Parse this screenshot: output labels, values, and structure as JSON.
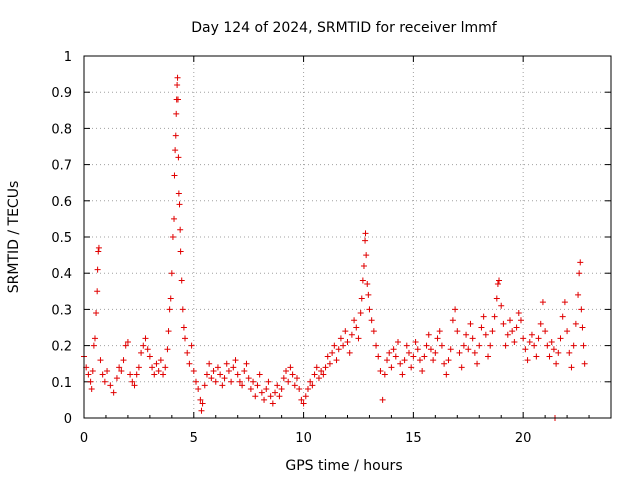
{
  "chart_data": {
    "type": "scatter",
    "title": "Day 124 of 2024, SRMTID for receiver lmmf",
    "xlabel": "GPS time / hours",
    "ylabel": "SRMTID / TECUs",
    "xlim": [
      0,
      24
    ],
    "ylim": [
      0,
      1
    ],
    "x_ticks": [
      0,
      5,
      10,
      15,
      20
    ],
    "y_ticks": [
      0,
      0.1,
      0.2,
      0.3,
      0.4,
      0.5,
      0.6,
      0.7,
      0.8,
      0.9,
      1
    ],
    "x_tick_labels": [
      "0",
      "5",
      "10",
      "15",
      "20"
    ],
    "y_tick_labels": [
      "0",
      "0.1",
      "0.2",
      "0.3",
      "0.4",
      "0.5",
      "0.6",
      "0.7",
      "0.8",
      "0.9",
      "1"
    ],
    "grid": true,
    "marker": "+",
    "color": "#e00000",
    "series": [
      {
        "name": "SRMTID",
        "points": [
          [
            0.0,
            0.17
          ],
          [
            0.1,
            0.14
          ],
          [
            0.2,
            0.12
          ],
          [
            0.3,
            0.1
          ],
          [
            0.35,
            0.08
          ],
          [
            0.4,
            0.13
          ],
          [
            0.45,
            0.2
          ],
          [
            0.5,
            0.22
          ],
          [
            0.55,
            0.29
          ],
          [
            0.6,
            0.35
          ],
          [
            0.62,
            0.41
          ],
          [
            0.65,
            0.46
          ],
          [
            0.68,
            0.47
          ],
          [
            0.75,
            0.16
          ],
          [
            0.85,
            0.12
          ],
          [
            0.95,
            0.1
          ],
          [
            1.05,
            0.13
          ],
          [
            1.2,
            0.09
          ],
          [
            1.35,
            0.07
          ],
          [
            1.5,
            0.11
          ],
          [
            1.6,
            0.14
          ],
          [
            1.7,
            0.13
          ],
          [
            1.8,
            0.16
          ],
          [
            1.9,
            0.2
          ],
          [
            2.0,
            0.21
          ],
          [
            2.1,
            0.12
          ],
          [
            2.2,
            0.1
          ],
          [
            2.3,
            0.09
          ],
          [
            2.4,
            0.12
          ],
          [
            2.5,
            0.14
          ],
          [
            2.6,
            0.18
          ],
          [
            2.7,
            0.2
          ],
          [
            2.8,
            0.22
          ],
          [
            2.9,
            0.19
          ],
          [
            3.0,
            0.17
          ],
          [
            3.1,
            0.14
          ],
          [
            3.2,
            0.12
          ],
          [
            3.3,
            0.15
          ],
          [
            3.4,
            0.13
          ],
          [
            3.5,
            0.16
          ],
          [
            3.6,
            0.12
          ],
          [
            3.7,
            0.14
          ],
          [
            3.8,
            0.19
          ],
          [
            3.85,
            0.24
          ],
          [
            3.9,
            0.3
          ],
          [
            3.95,
            0.33
          ],
          [
            4.0,
            0.4
          ],
          [
            4.05,
            0.5
          ],
          [
            4.1,
            0.55
          ],
          [
            4.12,
            0.67
          ],
          [
            4.15,
            0.74
          ],
          [
            4.18,
            0.78
          ],
          [
            4.2,
            0.84
          ],
          [
            4.22,
            0.88
          ],
          [
            4.24,
            0.92
          ],
          [
            4.26,
            0.94
          ],
          [
            4.28,
            0.88
          ],
          [
            4.3,
            0.72
          ],
          [
            4.32,
            0.62
          ],
          [
            4.35,
            0.59
          ],
          [
            4.38,
            0.52
          ],
          [
            4.4,
            0.46
          ],
          [
            4.45,
            0.38
          ],
          [
            4.5,
            0.3
          ],
          [
            4.55,
            0.25
          ],
          [
            4.6,
            0.22
          ],
          [
            4.7,
            0.18
          ],
          [
            4.8,
            0.15
          ],
          [
            4.9,
            0.2
          ],
          [
            5.0,
            0.13
          ],
          [
            5.1,
            0.1
          ],
          [
            5.2,
            0.08
          ],
          [
            5.3,
            0.05
          ],
          [
            5.35,
            0.02
          ],
          [
            5.4,
            0.04
          ],
          [
            5.5,
            0.09
          ],
          [
            5.6,
            0.12
          ],
          [
            5.7,
            0.15
          ],
          [
            5.8,
            0.11
          ],
          [
            5.9,
            0.13
          ],
          [
            6.0,
            0.1
          ],
          [
            6.1,
            0.14
          ],
          [
            6.2,
            0.12
          ],
          [
            6.3,
            0.09
          ],
          [
            6.4,
            0.11
          ],
          [
            6.5,
            0.15
          ],
          [
            6.6,
            0.13
          ],
          [
            6.7,
            0.1
          ],
          [
            6.8,
            0.14
          ],
          [
            6.9,
            0.16
          ],
          [
            7.0,
            0.12
          ],
          [
            7.1,
            0.1
          ],
          [
            7.2,
            0.09
          ],
          [
            7.3,
            0.13
          ],
          [
            7.4,
            0.15
          ],
          [
            7.5,
            0.11
          ],
          [
            7.6,
            0.08
          ],
          [
            7.7,
            0.1
          ],
          [
            7.8,
            0.06
          ],
          [
            7.9,
            0.09
          ],
          [
            8.0,
            0.12
          ],
          [
            8.1,
            0.07
          ],
          [
            8.2,
            0.05
          ],
          [
            8.3,
            0.08
          ],
          [
            8.4,
            0.1
          ],
          [
            8.5,
            0.06
          ],
          [
            8.6,
            0.04
          ],
          [
            8.7,
            0.07
          ],
          [
            8.8,
            0.09
          ],
          [
            8.9,
            0.06
          ],
          [
            9.0,
            0.08
          ],
          [
            9.1,
            0.11
          ],
          [
            9.2,
            0.13
          ],
          [
            9.3,
            0.1
          ],
          [
            9.4,
            0.14
          ],
          [
            9.5,
            0.12
          ],
          [
            9.6,
            0.09
          ],
          [
            9.7,
            0.11
          ],
          [
            9.8,
            0.08
          ],
          [
            9.9,
            0.05
          ],
          [
            10.0,
            0.04
          ],
          [
            10.1,
            0.06
          ],
          [
            10.2,
            0.08
          ],
          [
            10.3,
            0.1
          ],
          [
            10.4,
            0.09
          ],
          [
            10.5,
            0.12
          ],
          [
            10.6,
            0.14
          ],
          [
            10.7,
            0.11
          ],
          [
            10.8,
            0.13
          ],
          [
            10.9,
            0.12
          ],
          [
            11.0,
            0.14
          ],
          [
            11.1,
            0.17
          ],
          [
            11.2,
            0.15
          ],
          [
            11.3,
            0.18
          ],
          [
            11.4,
            0.2
          ],
          [
            11.5,
            0.16
          ],
          [
            11.6,
            0.19
          ],
          [
            11.7,
            0.22
          ],
          [
            11.8,
            0.2
          ],
          [
            11.9,
            0.24
          ],
          [
            12.0,
            0.21
          ],
          [
            12.1,
            0.18
          ],
          [
            12.2,
            0.23
          ],
          [
            12.3,
            0.27
          ],
          [
            12.4,
            0.25
          ],
          [
            12.5,
            0.22
          ],
          [
            12.6,
            0.29
          ],
          [
            12.65,
            0.33
          ],
          [
            12.7,
            0.38
          ],
          [
            12.75,
            0.42
          ],
          [
            12.8,
            0.49
          ],
          [
            12.82,
            0.51
          ],
          [
            12.85,
            0.45
          ],
          [
            12.9,
            0.37
          ],
          [
            12.95,
            0.34
          ],
          [
            13.0,
            0.3
          ],
          [
            13.1,
            0.27
          ],
          [
            13.2,
            0.24
          ],
          [
            13.3,
            0.2
          ],
          [
            13.4,
            0.17
          ],
          [
            13.5,
            0.13
          ],
          [
            13.6,
            0.05
          ],
          [
            13.7,
            0.12
          ],
          [
            13.8,
            0.16
          ],
          [
            13.9,
            0.18
          ],
          [
            14.0,
            0.14
          ],
          [
            14.1,
            0.19
          ],
          [
            14.2,
            0.17
          ],
          [
            14.3,
            0.21
          ],
          [
            14.4,
            0.15
          ],
          [
            14.5,
            0.12
          ],
          [
            14.6,
            0.16
          ],
          [
            14.7,
            0.2
          ],
          [
            14.8,
            0.18
          ],
          [
            14.9,
            0.14
          ],
          [
            15.0,
            0.17
          ],
          [
            15.1,
            0.21
          ],
          [
            15.2,
            0.19
          ],
          [
            15.3,
            0.16
          ],
          [
            15.4,
            0.13
          ],
          [
            15.5,
            0.17
          ],
          [
            15.6,
            0.2
          ],
          [
            15.7,
            0.23
          ],
          [
            15.8,
            0.19
          ],
          [
            15.9,
            0.16
          ],
          [
            16.0,
            0.18
          ],
          [
            16.1,
            0.22
          ],
          [
            16.2,
            0.24
          ],
          [
            16.3,
            0.2
          ],
          [
            16.4,
            0.15
          ],
          [
            16.5,
            0.12
          ],
          [
            16.6,
            0.16
          ],
          [
            16.7,
            0.19
          ],
          [
            16.8,
            0.27
          ],
          [
            16.9,
            0.3
          ],
          [
            17.0,
            0.24
          ],
          [
            17.1,
            0.18
          ],
          [
            17.2,
            0.14
          ],
          [
            17.3,
            0.2
          ],
          [
            17.4,
            0.23
          ],
          [
            17.5,
            0.19
          ],
          [
            17.6,
            0.26
          ],
          [
            17.7,
            0.22
          ],
          [
            17.8,
            0.18
          ],
          [
            17.9,
            0.15
          ],
          [
            18.0,
            0.2
          ],
          [
            18.1,
            0.25
          ],
          [
            18.2,
            0.28
          ],
          [
            18.3,
            0.23
          ],
          [
            18.4,
            0.17
          ],
          [
            18.5,
            0.2
          ],
          [
            18.6,
            0.24
          ],
          [
            18.7,
            0.28
          ],
          [
            18.8,
            0.33
          ],
          [
            18.85,
            0.37
          ],
          [
            18.9,
            0.38
          ],
          [
            19.0,
            0.31
          ],
          [
            19.1,
            0.26
          ],
          [
            19.2,
            0.2
          ],
          [
            19.3,
            0.23
          ],
          [
            19.4,
            0.27
          ],
          [
            19.5,
            0.24
          ],
          [
            19.6,
            0.21
          ],
          [
            19.7,
            0.25
          ],
          [
            19.8,
            0.29
          ],
          [
            19.9,
            0.27
          ],
          [
            20.0,
            0.22
          ],
          [
            20.1,
            0.19
          ],
          [
            20.2,
            0.16
          ],
          [
            20.3,
            0.21
          ],
          [
            20.4,
            0.23
          ],
          [
            20.5,
            0.2
          ],
          [
            20.6,
            0.17
          ],
          [
            20.7,
            0.22
          ],
          [
            20.8,
            0.26
          ],
          [
            20.9,
            0.32
          ],
          [
            21.0,
            0.24
          ],
          [
            21.1,
            0.2
          ],
          [
            21.2,
            0.17
          ],
          [
            21.3,
            0.21
          ],
          [
            21.4,
            0.19
          ],
          [
            21.45,
            0.0
          ],
          [
            21.5,
            0.15
          ],
          [
            21.6,
            0.18
          ],
          [
            21.7,
            0.22
          ],
          [
            21.8,
            0.28
          ],
          [
            21.9,
            0.32
          ],
          [
            22.0,
            0.24
          ],
          [
            22.1,
            0.18
          ],
          [
            22.2,
            0.14
          ],
          [
            22.3,
            0.2
          ],
          [
            22.4,
            0.26
          ],
          [
            22.5,
            0.34
          ],
          [
            22.55,
            0.4
          ],
          [
            22.6,
            0.43
          ],
          [
            22.65,
            0.3
          ],
          [
            22.7,
            0.25
          ],
          [
            22.75,
            0.2
          ],
          [
            22.8,
            0.15
          ]
        ]
      }
    ]
  }
}
